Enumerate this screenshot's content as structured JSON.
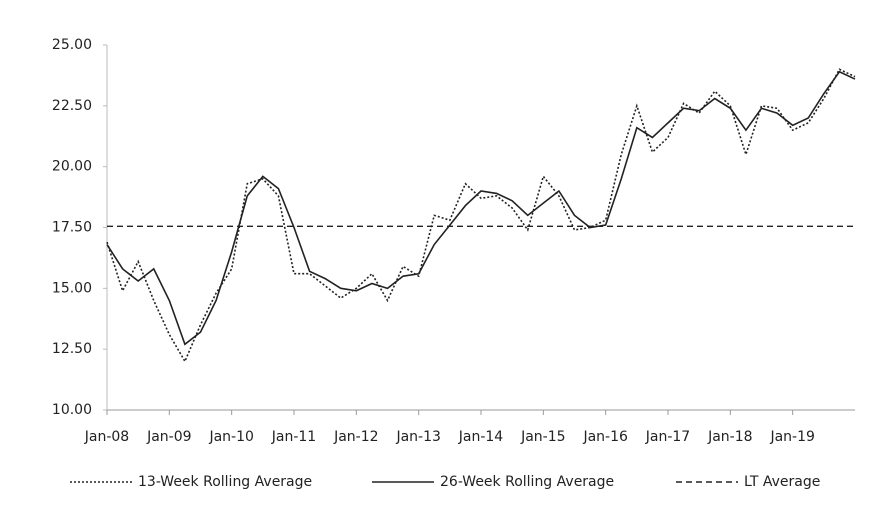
{
  "chart_data": {
    "type": "line",
    "x": [
      2008,
      2008.25,
      2008.5,
      2008.75,
      2009,
      2009.25,
      2009.5,
      2009.75,
      2010,
      2010.25,
      2010.5,
      2010.75,
      2011,
      2011.25,
      2011.5,
      2011.75,
      2012,
      2012.25,
      2012.5,
      2012.75,
      2013,
      2013.25,
      2013.5,
      2013.75,
      2014,
      2014.25,
      2014.5,
      2014.75,
      2015,
      2015.25,
      2015.5,
      2015.75,
      2016,
      2016.25,
      2016.5,
      2016.75,
      2017,
      2017.25,
      2017.5,
      2017.75,
      2018,
      2018.25,
      2018.5,
      2018.75,
      2019,
      2019.25,
      2019.5,
      2019.75,
      2020
    ],
    "series": [
      {
        "name": "13-Week Rolling Average",
        "color": "#222222",
        "dash": "dotted",
        "values": [
          16.9,
          14.9,
          16.1,
          14.5,
          13.1,
          12.0,
          13.5,
          14.8,
          15.8,
          19.3,
          19.5,
          18.8,
          15.6,
          15.6,
          15.1,
          14.6,
          15.0,
          15.6,
          14.5,
          15.9,
          15.5,
          18.0,
          17.8,
          19.3,
          18.7,
          18.8,
          18.3,
          17.4,
          19.6,
          18.8,
          17.4,
          17.5,
          17.8,
          20.5,
          22.5,
          20.6,
          21.2,
          22.6,
          22.2,
          23.1,
          22.5,
          20.5,
          22.5,
          22.4,
          21.5,
          21.8,
          22.8,
          24.0,
          23.7
        ]
      },
      {
        "name": "26-Week Rolling Average",
        "color": "#222222",
        "dash": "solid",
        "values": [
          16.8,
          15.8,
          15.3,
          15.8,
          14.5,
          12.7,
          13.2,
          14.5,
          16.5,
          18.8,
          19.6,
          19.1,
          17.5,
          15.7,
          15.4,
          15.0,
          14.9,
          15.2,
          15.0,
          15.5,
          15.6,
          16.8,
          17.6,
          18.4,
          19.0,
          18.9,
          18.6,
          18.0,
          18.5,
          19.0,
          18.0,
          17.5,
          17.6,
          19.5,
          21.6,
          21.2,
          21.8,
          22.4,
          22.3,
          22.8,
          22.4,
          21.5,
          22.4,
          22.2,
          21.7,
          22.0,
          23.0,
          23.9,
          23.6
        ]
      },
      {
        "name": "LT Average",
        "color": "#222222",
        "dash": "dashed",
        "value": 17.55
      }
    ],
    "xlim": [
      2008,
      2020
    ],
    "xticks": [
      {
        "value": 2008,
        "label": "Jan-08"
      },
      {
        "value": 2009,
        "label": "Jan-09"
      },
      {
        "value": 2010,
        "label": "Jan-10"
      },
      {
        "value": 2011,
        "label": "Jan-11"
      },
      {
        "value": 2012,
        "label": "Jan-12"
      },
      {
        "value": 2013,
        "label": "Jan-13"
      },
      {
        "value": 2014,
        "label": "Jan-14"
      },
      {
        "value": 2015,
        "label": "Jan-15"
      },
      {
        "value": 2016,
        "label": "Jan-16"
      },
      {
        "value": 2017,
        "label": "Jan-17"
      },
      {
        "value": 2018,
        "label": "Jan-18"
      },
      {
        "value": 2019,
        "label": "Jan-19"
      }
    ],
    "ylim": [
      10,
      25
    ],
    "yticks": [
      {
        "value": 10,
        "label": "10.00"
      },
      {
        "value": 12.5,
        "label": "12.50"
      },
      {
        "value": 15,
        "label": "15.00"
      },
      {
        "value": 17.5,
        "label": "17.50"
      },
      {
        "value": 20,
        "label": "20.00"
      },
      {
        "value": 22.5,
        "label": "22.50"
      },
      {
        "value": 25,
        "label": "25.00"
      }
    ],
    "legend": "bottom"
  }
}
